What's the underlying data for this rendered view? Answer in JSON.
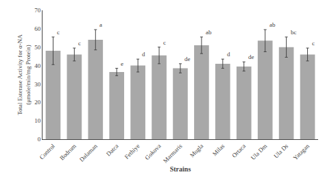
{
  "chart_data": {
    "type": "bar",
    "categories": [
      "Control",
      "Bodrum",
      "Dalaman",
      "Datca",
      "Fethiye",
      "Gokova",
      "Marmaris",
      "Mugla",
      "Milas",
      "Ortaca",
      "Ula Dm",
      "Ula Ds",
      "Yatagan"
    ],
    "values": [
      48.0,
      46.0,
      54.0,
      36.5,
      40.0,
      45.5,
      38.5,
      51.0,
      41.0,
      39.5,
      53.5,
      50.0,
      46.0
    ],
    "errors": [
      7.5,
      3.5,
      5.5,
      2.0,
      3.5,
      4.5,
      2.5,
      4.5,
      2.5,
      2.5,
      6.0,
      5.5,
      3.5
    ],
    "annotations": [
      "c",
      "c",
      "a",
      "e",
      "d",
      "c",
      "de",
      "ab",
      "d",
      "de",
      "ab",
      "bc",
      "c"
    ],
    "color": "#a8a8a8",
    "xlabel": "Strains",
    "ylabel": "Total Esterase Activity for α-NA\n(μmole/min/mg Protein)",
    "ylim": [
      0,
      70
    ],
    "yticks": [
      0,
      10,
      20,
      30,
      40,
      50,
      60,
      70
    ],
    "grid": false
  }
}
